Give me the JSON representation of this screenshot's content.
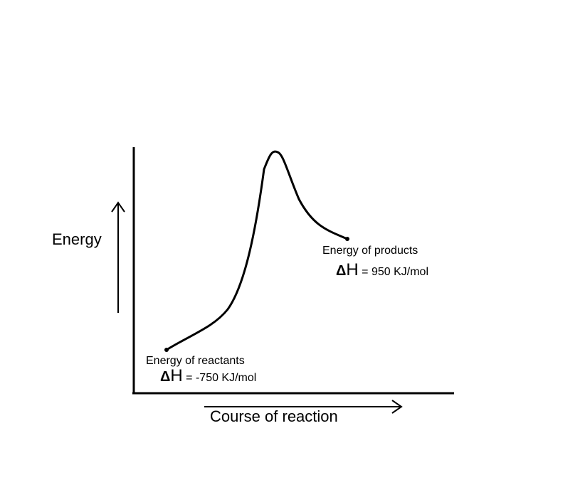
{
  "y_axis_label": "Energy",
  "x_axis_label": "Course of reaction",
  "reactants": {
    "label": "Energy of reactants",
    "delta_symbol": "Δ",
    "h_symbol": "H",
    "value_text": "= -750 KJ/mol"
  },
  "products": {
    "label": "Energy of products",
    "delta_symbol": "Δ",
    "h_symbol": "H",
    "value_text": "= 950 KJ/mol"
  }
}
